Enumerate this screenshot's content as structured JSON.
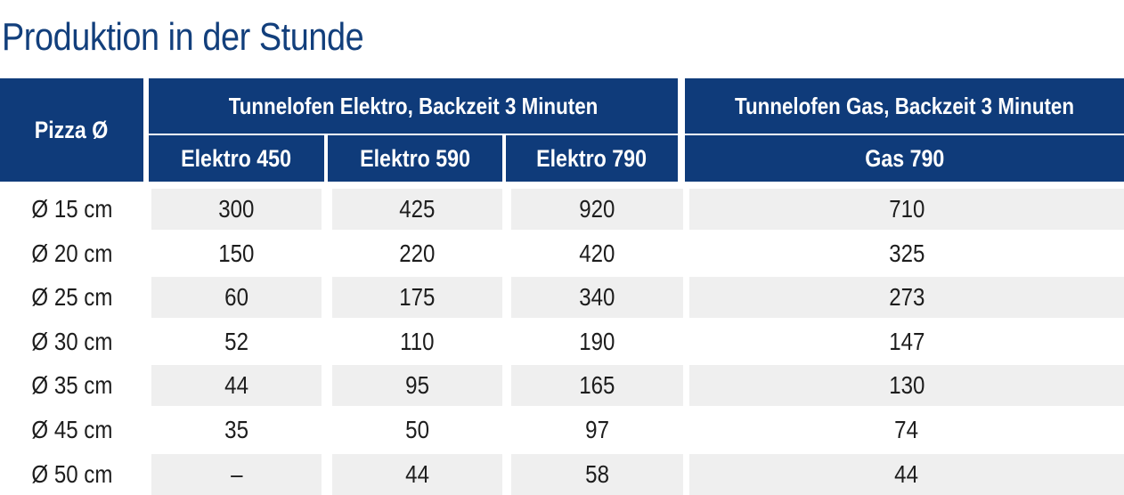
{
  "title": "Produktion in der Stunde",
  "colors": {
    "title": "#123f7c",
    "header_bg": "#0f3b7a",
    "header_text": "#ffffff",
    "row_alt": "#efefef"
  },
  "table": {
    "header": {
      "pizza": "Pizza Ø",
      "group_elektro": "Tunnelofen Elektro, Backzeit 3 Minuten",
      "group_gas": "Tunnelofen Gas, Backzeit 3 Minuten",
      "columns": [
        "Elektro 450",
        "Elektro 590",
        "Elektro 790",
        "Gas 790"
      ]
    },
    "rows": [
      [
        "Ø 15 cm",
        "300",
        "425",
        "920",
        "710"
      ],
      [
        "Ø 20 cm",
        "150",
        "220",
        "420",
        "325"
      ],
      [
        "Ø 25 cm",
        "60",
        "175",
        "340",
        "273"
      ],
      [
        "Ø 30 cm",
        "52",
        "110",
        "190",
        "147"
      ],
      [
        "Ø 35 cm",
        "44",
        "95",
        "165",
        "130"
      ],
      [
        "Ø 45 cm",
        "35",
        "50",
        "97",
        "74"
      ],
      [
        "Ø 50 cm",
        "–",
        "44",
        "58",
        "44"
      ]
    ]
  }
}
